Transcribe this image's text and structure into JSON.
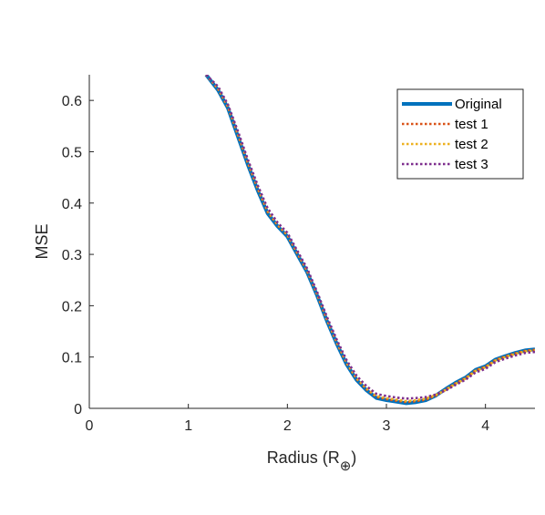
{
  "chart_data": {
    "type": "line",
    "title": "",
    "xlabel": "Radius (R",
    "xlabel_subscript": "⊕",
    "xlabel_close": ")",
    "ylabel": "MSE",
    "xlim": [
      0,
      4.5
    ],
    "ylim": [
      0,
      0.65
    ],
    "xticks": [
      0,
      1,
      2,
      3,
      4
    ],
    "yticks": [
      0,
      0.1,
      0.2,
      0.3,
      0.4,
      0.5,
      0.6
    ],
    "xtick_labels": [
      "0",
      "1",
      "2",
      "3",
      "4"
    ],
    "ytick_labels": [
      "0",
      "0.1",
      "0.2",
      "0.3",
      "0.4",
      "0.5",
      "0.6"
    ],
    "grid": false,
    "legend_position": "top-right",
    "series": [
      {
        "name": "Original",
        "color": "#0072BD",
        "style": "solid",
        "x": [
          1.18,
          1.3,
          1.4,
          1.5,
          1.6,
          1.7,
          1.8,
          1.9,
          2.0,
          2.1,
          2.2,
          2.3,
          2.4,
          2.5,
          2.6,
          2.7,
          2.8,
          2.9,
          3.0,
          3.1,
          3.2,
          3.3,
          3.4,
          3.5,
          3.6,
          3.7,
          3.8,
          3.9,
          4.0,
          4.1,
          4.2,
          4.3,
          4.4,
          4.5
        ],
        "y": [
          0.65,
          0.62,
          0.585,
          0.53,
          0.475,
          0.425,
          0.38,
          0.355,
          0.335,
          0.3,
          0.265,
          0.22,
          0.17,
          0.125,
          0.085,
          0.055,
          0.035,
          0.02,
          0.016,
          0.013,
          0.01,
          0.012,
          0.016,
          0.025,
          0.038,
          0.05,
          0.06,
          0.075,
          0.082,
          0.095,
          0.102,
          0.108,
          0.113,
          0.115
        ]
      },
      {
        "name": "test 1",
        "color": "#D95319",
        "style": "dotted",
        "x": [
          1.18,
          1.3,
          1.4,
          1.5,
          1.6,
          1.7,
          1.8,
          1.9,
          2.0,
          2.1,
          2.2,
          2.3,
          2.4,
          2.5,
          2.6,
          2.7,
          2.8,
          2.9,
          3.0,
          3.1,
          3.2,
          3.3,
          3.4,
          3.5,
          3.6,
          3.7,
          3.8,
          3.9,
          4.0,
          4.1,
          4.2,
          4.3,
          4.4,
          4.5
        ],
        "y": [
          0.65,
          0.622,
          0.587,
          0.533,
          0.478,
          0.428,
          0.383,
          0.357,
          0.337,
          0.302,
          0.267,
          0.222,
          0.172,
          0.127,
          0.087,
          0.057,
          0.037,
          0.022,
          0.018,
          0.015,
          0.012,
          0.014,
          0.017,
          0.025,
          0.037,
          0.049,
          0.059,
          0.074,
          0.081,
          0.094,
          0.101,
          0.107,
          0.112,
          0.114
        ]
      },
      {
        "name": "test 2",
        "color": "#EDB120",
        "style": "dotted",
        "x": [
          1.18,
          1.3,
          1.4,
          1.5,
          1.6,
          1.7,
          1.8,
          1.9,
          2.0,
          2.1,
          2.2,
          2.3,
          2.4,
          2.5,
          2.6,
          2.7,
          2.8,
          2.9,
          3.0,
          3.1,
          3.2,
          3.3,
          3.4,
          3.5,
          3.6,
          3.7,
          3.8,
          3.9,
          4.0,
          4.1,
          4.2,
          4.3,
          4.4,
          4.5
        ],
        "y": [
          0.65,
          0.624,
          0.589,
          0.536,
          0.481,
          0.431,
          0.386,
          0.359,
          0.339,
          0.304,
          0.269,
          0.224,
          0.174,
          0.129,
          0.089,
          0.059,
          0.039,
          0.024,
          0.02,
          0.017,
          0.014,
          0.016,
          0.019,
          0.026,
          0.036,
          0.048,
          0.058,
          0.073,
          0.08,
          0.093,
          0.1,
          0.106,
          0.111,
          0.113
        ]
      },
      {
        "name": "test 3",
        "color": "#7E2F8E",
        "style": "dotted",
        "x": [
          1.18,
          1.3,
          1.4,
          1.5,
          1.6,
          1.7,
          1.8,
          1.9,
          2.0,
          2.1,
          2.2,
          2.3,
          2.4,
          2.5,
          2.6,
          2.7,
          2.8,
          2.9,
          3.0,
          3.1,
          3.2,
          3.3,
          3.4,
          3.5,
          3.6,
          3.7,
          3.8,
          3.9,
          4.0,
          4.1,
          4.2,
          4.3,
          4.4,
          4.5
        ],
        "y": [
          0.65,
          0.627,
          0.592,
          0.54,
          0.485,
          0.435,
          0.39,
          0.362,
          0.342,
          0.307,
          0.272,
          0.227,
          0.178,
          0.133,
          0.093,
          0.063,
          0.043,
          0.028,
          0.024,
          0.021,
          0.019,
          0.02,
          0.022,
          0.027,
          0.035,
          0.046,
          0.056,
          0.07,
          0.077,
          0.09,
          0.097,
          0.103,
          0.108,
          0.11
        ]
      }
    ]
  }
}
